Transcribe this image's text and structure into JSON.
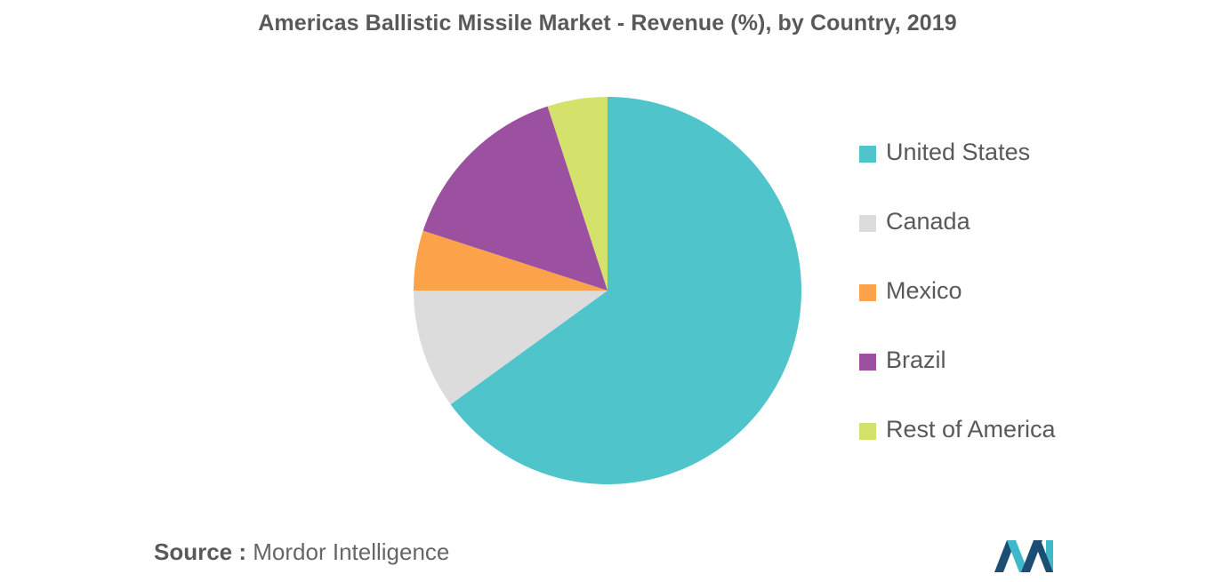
{
  "chart_data": {
    "type": "pie",
    "title": "Americas Ballistic Missile Market - Revenue (%), by Country, 2019",
    "legend_position": "right",
    "slices": [
      {
        "label": "United States",
        "value": 65,
        "color": "#4fc4ca"
      },
      {
        "label": "Canada",
        "value": 10,
        "color": "#dcdcdc"
      },
      {
        "label": "Mexico",
        "value": 5,
        "color": "#fca24b"
      },
      {
        "label": "Brazil",
        "value": 15,
        "color": "#9b51a0"
      },
      {
        "label": "Rest of America",
        "value": 5,
        "color": "#d4e26b"
      }
    ]
  },
  "source": {
    "key": "Source :",
    "value": "Mordor Intelligence"
  },
  "logo": {
    "icon": "mordor-intelligence-logo-icon",
    "colors": [
      "#1c4e73",
      "#3fb8c9"
    ]
  }
}
